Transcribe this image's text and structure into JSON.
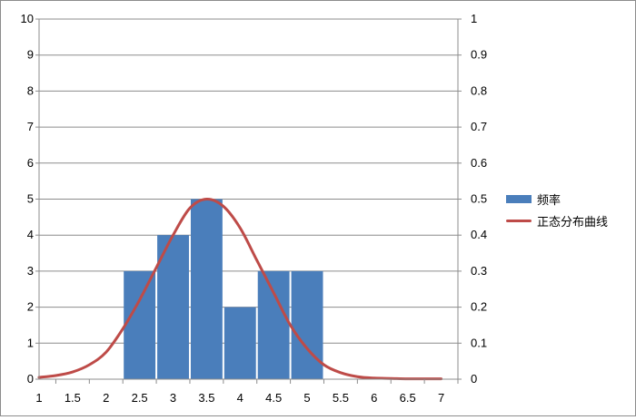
{
  "chart_data": {
    "type": "bar",
    "x_ticks": [
      "1",
      "1.5",
      "2",
      "2.5",
      "3",
      "3.5",
      "4",
      "4.5",
      "5",
      "5.5",
      "6",
      "6.5",
      "7"
    ],
    "xlim": [
      1,
      7.25
    ],
    "ylim_left": [
      0,
      10
    ],
    "ylim_right": [
      0,
      1
    ],
    "y_ticks_left": [
      "0",
      "1",
      "2",
      "3",
      "4",
      "5",
      "6",
      "7",
      "8",
      "9",
      "10"
    ],
    "y_ticks_right": [
      "0",
      "0.1",
      "0.2",
      "0.3",
      "0.4",
      "0.5",
      "0.6",
      "0.7",
      "0.8",
      "0.9",
      "1"
    ],
    "grid": true,
    "legend_position": "right",
    "series": [
      {
        "name": "频率",
        "type": "bar",
        "axis": "left",
        "color": "#4a7ebb",
        "bins": [
          {
            "from": 2.25,
            "to": 2.75,
            "value": 3
          },
          {
            "from": 2.75,
            "to": 3.25,
            "value": 4
          },
          {
            "from": 3.25,
            "to": 3.75,
            "value": 5
          },
          {
            "from": 3.75,
            "to": 4.25,
            "value": 2
          },
          {
            "from": 4.25,
            "to": 4.75,
            "value": 3
          },
          {
            "from": 4.75,
            "to": 5.25,
            "value": 3
          }
        ]
      },
      {
        "name": "正态分布曲线",
        "type": "line",
        "axis": "right",
        "color": "#be4b48",
        "x": [
          1,
          1.25,
          1.5,
          1.75,
          2,
          2.25,
          2.5,
          2.75,
          3,
          3.25,
          3.5,
          3.75,
          4,
          4.25,
          4.5,
          4.75,
          5,
          5.25,
          5.5,
          5.75,
          6,
          6.25,
          6.5,
          6.75,
          7
        ],
        "y": [
          0.005,
          0.01,
          0.02,
          0.04,
          0.075,
          0.14,
          0.22,
          0.31,
          0.4,
          0.475,
          0.5,
          0.48,
          0.42,
          0.33,
          0.24,
          0.15,
          0.085,
          0.04,
          0.018,
          0.007,
          0.003,
          0.002,
          0.001,
          0.001,
          0.001
        ]
      }
    ]
  }
}
